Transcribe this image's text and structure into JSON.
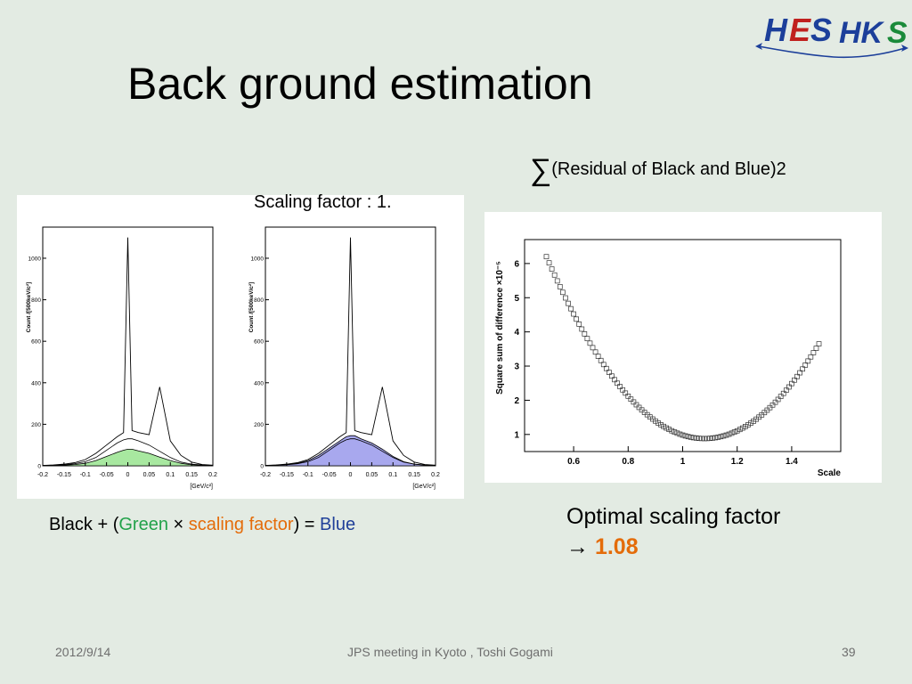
{
  "slide": {
    "title": "Back ground estimation",
    "logo": {
      "left_text": "HES",
      "right_text": "HKS",
      "colors": {
        "primary": "#1c3f9a",
        "accent": "#c0201e",
        "green": "#1a8a3a"
      }
    },
    "sum_label": {
      "symbol": "∑",
      "text": "(Residual of Black and Blue)2"
    },
    "scaling_label": "Scaling factor : 1.",
    "formula": {
      "black": "Black + (",
      "green": "Green",
      "times": " × ",
      "scaling": "scaling factor",
      "close": ") = ",
      "blue": "Blue"
    },
    "optimal": {
      "line1": "Optimal scaling factor",
      "arrow": "→ ",
      "value": "1.08"
    },
    "footer": {
      "date": "2012/9/14",
      "center": "JPS meeting in Kyoto , Toshi Gogami",
      "page": "39"
    }
  },
  "colors": {
    "background": "#e3ebe3",
    "green_fill": "#a8e8a0",
    "blue_fill": "#a8a8ee",
    "orange": "#e46c0a",
    "green_text": "#22a24a",
    "blue_text": "#1f3f99"
  },
  "chart_data": [
    {
      "type": "area",
      "title": "",
      "xlabel": "[GeV/c²]",
      "ylabel": "Count /[500keV/c²]",
      "xlim": [
        -0.2,
        0.2
      ],
      "ylim": [
        0,
        1150
      ],
      "x_ticks": [
        "-0.2",
        "-0.15",
        "-0.1",
        "-0.05",
        "0",
        "0.05",
        "0.1",
        "0.15",
        "0.2"
      ],
      "y_ticks": [
        "0",
        "200",
        "400",
        "600",
        "800",
        "1000"
      ],
      "x": [
        -0.2,
        -0.175,
        -0.15,
        -0.125,
        -0.1,
        -0.075,
        -0.05,
        -0.025,
        -0.01,
        0,
        0.01,
        0.025,
        0.05,
        0.075,
        0.1,
        0.125,
        0.15,
        0.175,
        0.2
      ],
      "series": [
        {
          "values": [
            2,
            3,
            5,
            10,
            20,
            40,
            75,
            110,
            125,
            130,
            130,
            120,
            100,
            70,
            40,
            18,
            8,
            4,
            2
          ]
        },
        {
          "values": [
            2,
            4,
            8,
            15,
            30,
            60,
            100,
            140,
            160,
            1100,
            170,
            160,
            150,
            380,
            120,
            50,
            18,
            6,
            3
          ]
        },
        {
          "values": [
            1,
            2,
            3,
            6,
            12,
            25,
            45,
            65,
            75,
            80,
            80,
            72,
            60,
            42,
            25,
            12,
            5,
            2,
            1
          ]
        }
      ]
    },
    {
      "type": "area",
      "title": "",
      "xlabel": "[GeV/c²]",
      "ylabel": "Count /[500keV/c²]",
      "xlim": [
        -0.2,
        0.2
      ],
      "ylim": [
        0,
        1150
      ],
      "x_ticks": [
        "-0.2",
        "-0.15",
        "-0.1",
        "-0.05",
        "0",
        "0.05",
        "0.1",
        "0.15",
        "0.2"
      ],
      "y_ticks": [
        "0",
        "200",
        "400",
        "600",
        "800",
        "1000"
      ],
      "x": [
        -0.2,
        -0.175,
        -0.15,
        -0.125,
        -0.1,
        -0.075,
        -0.05,
        -0.025,
        -0.01,
        0,
        0.01,
        0.025,
        0.05,
        0.075,
        0.1,
        0.125,
        0.15,
        0.175,
        0.2
      ],
      "series": [
        {
          "values": [
            2,
            3,
            5,
            10,
            20,
            40,
            75,
            110,
            125,
            130,
            130,
            120,
            100,
            70,
            40,
            18,
            8,
            4,
            2
          ]
        },
        {
          "values": [
            2,
            4,
            8,
            15,
            30,
            60,
            100,
            140,
            160,
            1100,
            170,
            160,
            150,
            380,
            120,
            50,
            18,
            6,
            3
          ]
        },
        {
          "values": [
            1,
            3,
            6,
            12,
            25,
            50,
            85,
            120,
            140,
            145,
            145,
            130,
            110,
            80,
            45,
            20,
            8,
            3,
            1
          ]
        }
      ]
    },
    {
      "type": "scatter",
      "title": "",
      "xlabel": "Scale",
      "ylabel": "Square sum of difference ×10⁻⁵",
      "xlim": [
        0.42,
        1.58
      ],
      "ylim": [
        0.5,
        6.7
      ],
      "x_ticks": [
        "0.6",
        "0.8",
        "1",
        "1.2",
        "1.4"
      ],
      "y_ticks": [
        "1",
        "2",
        "3",
        "4",
        "5",
        "6"
      ],
      "x_range": [
        0.5,
        1.5
      ],
      "n_points": 101,
      "fit": {
        "min_scale": 1.08,
        "min_value": 0.88
      },
      "points_sample": [
        [
          0.5,
          6.2
        ],
        [
          0.6,
          4.8
        ],
        [
          0.7,
          3.5
        ],
        [
          0.8,
          2.5
        ],
        [
          0.9,
          1.6
        ],
        [
          1.0,
          1.05
        ],
        [
          1.08,
          0.88
        ],
        [
          1.2,
          1.0
        ],
        [
          1.3,
          1.6
        ],
        [
          1.4,
          2.5
        ],
        [
          1.5,
          3.65
        ]
      ]
    }
  ]
}
